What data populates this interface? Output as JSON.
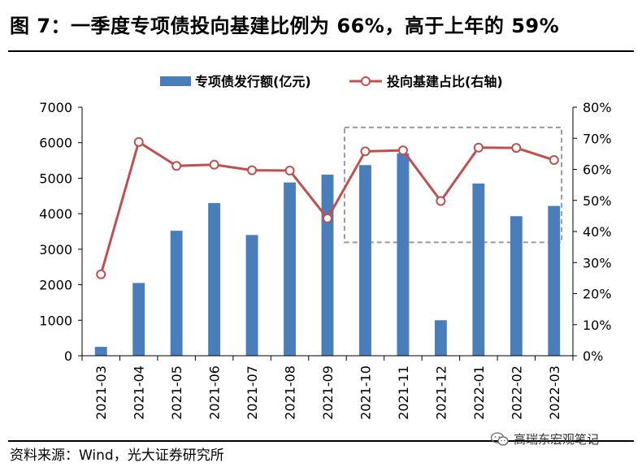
{
  "header": {
    "title": "图 7：一季度专项债投向基建比例为 66%，高于上年的 59%"
  },
  "footer": {
    "source": "资料来源：Wind，光大证券研究所",
    "watermark": "高瑞东宏观笔记"
  },
  "chart_data": {
    "type": "bar",
    "categories": [
      "2021-03",
      "2021-04",
      "2021-05",
      "2021-06",
      "2021-07",
      "2021-08",
      "2021-09",
      "2021-10",
      "2021-11",
      "2021-12",
      "2022-01",
      "2022-02",
      "2022-03"
    ],
    "series": [
      {
        "name": "专项债发行额(亿元)",
        "type": "bar",
        "axis": "left",
        "color": "#4a7ebb",
        "values": [
          250,
          2050,
          3520,
          4300,
          3400,
          4880,
          5100,
          5370,
          5700,
          1000,
          4850,
          3930,
          4220
        ]
      },
      {
        "name": "投向基建占比(右轴)",
        "type": "line",
        "axis": "right",
        "color": "#c0504d",
        "values": [
          26.2,
          68.8,
          61.1,
          61.5,
          59.7,
          59.6,
          44.2,
          65.8,
          66.1,
          49.8,
          67.0,
          66.9,
          63.0
        ]
      }
    ],
    "y_left": {
      "min": 0,
      "max": 7000,
      "ticks": [
        "0",
        "1000",
        "2000",
        "3000",
        "4000",
        "5000",
        "6000",
        "7000"
      ]
    },
    "y_right": {
      "min": 0,
      "max": 80,
      "ticks": [
        "0%",
        "10%",
        "20%",
        "30%",
        "40%",
        "50%",
        "60%",
        "70%",
        "80%"
      ]
    },
    "highlight_box": {
      "from_category": "2021-10",
      "to_category": "2022-03",
      "y_right_from": 36.5,
      "y_right_to": 73.5
    },
    "legend_position": "top",
    "grid": false
  }
}
